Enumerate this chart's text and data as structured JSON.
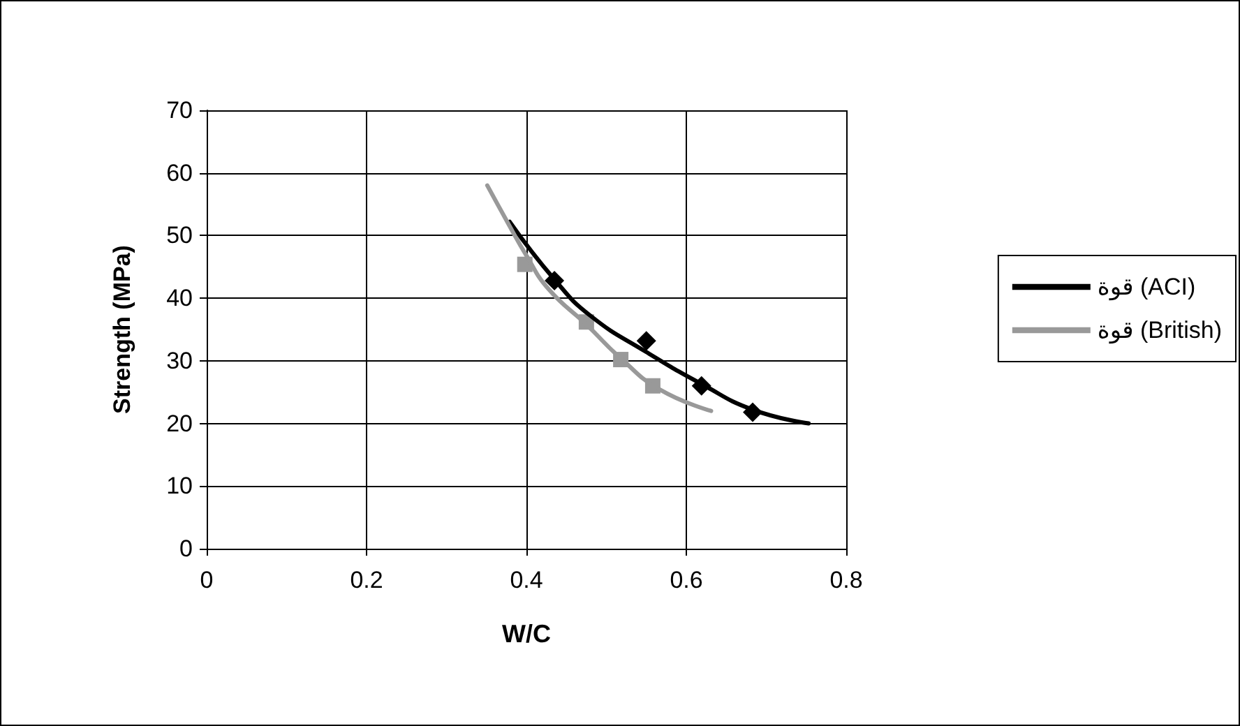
{
  "chart_data": {
    "type": "scatter",
    "xlabel": "W/C",
    "ylabel": "Strength (MPa)",
    "xlim": [
      0,
      0.8
    ],
    "xticks": [
      0,
      0.2,
      0.4,
      0.6,
      0.8
    ],
    "ylim": [
      0,
      70
    ],
    "yticks": [
      0,
      10,
      20,
      30,
      40,
      50,
      60,
      70
    ],
    "grid": true,
    "legend": "right",
    "series": [
      {
        "name": "قوة (ACI)",
        "type": "line",
        "color": "#000000",
        "marker": "none",
        "x": [
          0.379,
          0.435,
          0.48,
          0.55,
          0.619,
          0.683,
          0.753
        ],
        "values": [
          52.2,
          43,
          37.2,
          31.4,
          26.3,
          22.2,
          20
        ]
      },
      {
        "name": "قوة (British)",
        "type": "line",
        "color": "#999999",
        "marker": "none",
        "x": [
          0.351,
          0.376,
          0.4,
          0.428,
          0.475,
          0.518,
          0.567,
          0.631
        ],
        "values": [
          58,
          52.2,
          46.8,
          41.4,
          35.8,
          30.4,
          25.4,
          22
        ]
      },
      {
        "color": "#000000",
        "marker": "diamond",
        "x": [
          0.435,
          0.55,
          0.619,
          0.683
        ],
        "values": [
          42.8,
          33.2,
          26,
          21.8
        ]
      },
      {
        "color": "#999999",
        "marker": "square",
        "x": [
          0.398,
          0.475,
          0.518,
          0.558
        ],
        "values": [
          45.4,
          36.2,
          30.2,
          26
        ]
      }
    ]
  }
}
